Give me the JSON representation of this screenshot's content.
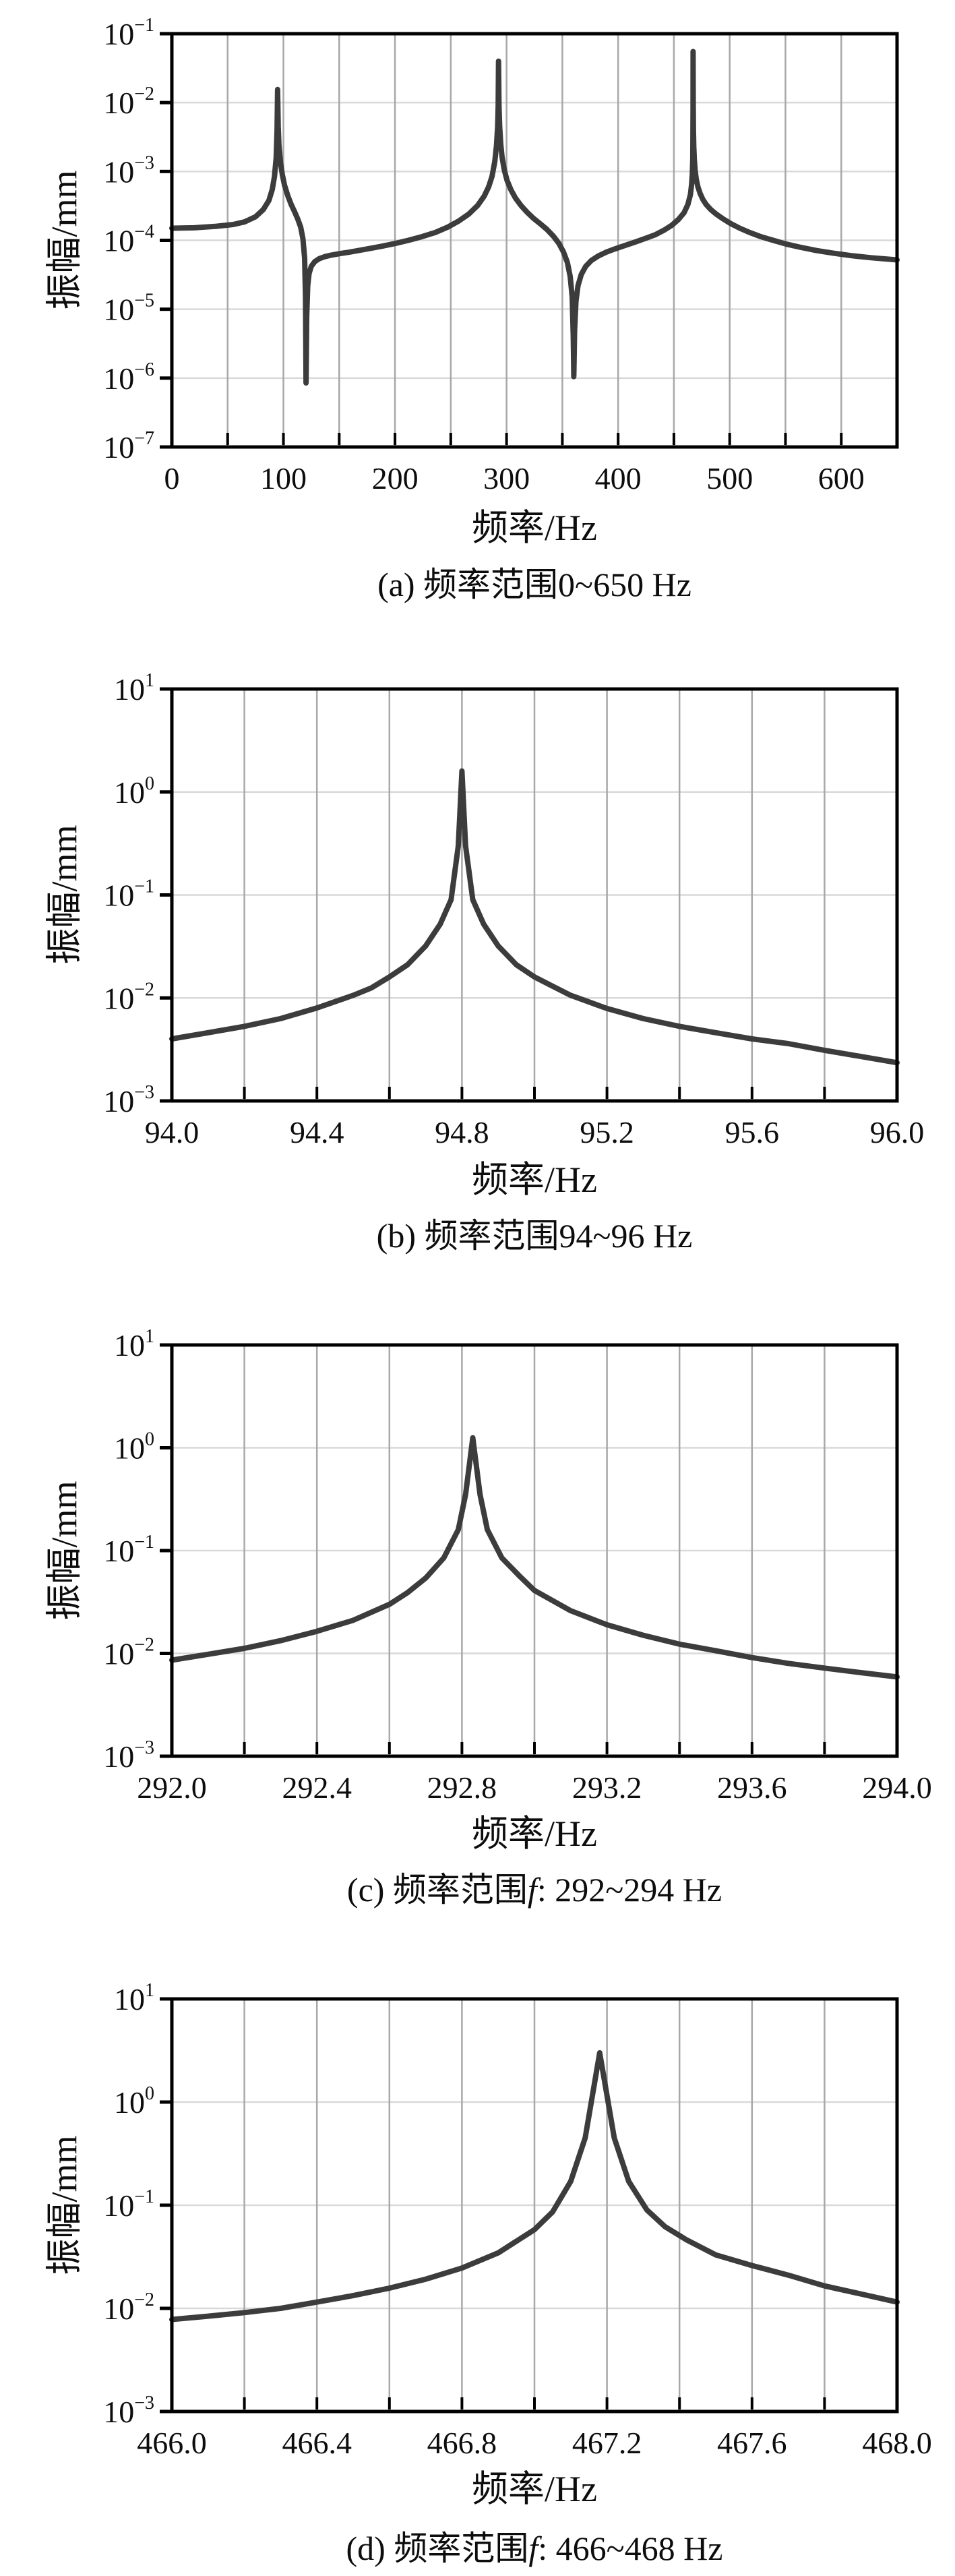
{
  "figure": {
    "description": "四幅振动幅频响应曲线(对数坐标)",
    "background": "#ffffff"
  },
  "style": {
    "curve_color": "#3c3c3c",
    "frame_color": "#000000",
    "grid_vertical_color": "#a8a8a8",
    "grid_horizontal_color": "#d9d9d9",
    "text_color": "#0d0d0d"
  },
  "chart_data": [
    {
      "id": "a",
      "type": "line",
      "caption": {
        "pre": "(a) 频率范围0~650 Hz",
        "em": "",
        "post": ""
      },
      "xlabel": "频率/Hz",
      "ylabel": "振幅/mm",
      "x_min": 0,
      "x_max": 650,
      "x_grid_step": 50,
      "x_ticks": [
        {
          "v": 0,
          "label": "0"
        },
        {
          "v": 100,
          "label": "100"
        },
        {
          "v": 200,
          "label": "200"
        },
        {
          "v": 300,
          "label": "300"
        },
        {
          "v": 400,
          "label": "400"
        },
        {
          "v": 500,
          "label": "500"
        },
        {
          "v": 600,
          "label": "600"
        }
      ],
      "y_tick_base": "10",
      "y_exponents": [
        -1,
        -2,
        -3,
        -4,
        -5,
        -6,
        -7
      ],
      "ylim": [
        1e-07,
        0.1
      ],
      "grid": true,
      "legend": null,
      "resonances_hz": [
        94.8,
        292.8,
        467.2
      ],
      "resonance_amplitudes_mm": [
        0.0155,
        0.04,
        0.055
      ],
      "antiresonances_hz": [
        120.3,
        360.3
      ],
      "antiresonance_amplitudes_mm": [
        8.5e-07,
        1.05e-06
      ],
      "points": [
        [
          0,
          0.00015
        ],
        [
          20,
          0.000152
        ],
        [
          40,
          0.00016
        ],
        [
          55,
          0.00017
        ],
        [
          65,
          0.000185
        ],
        [
          75,
          0.00022
        ],
        [
          82,
          0.00028
        ],
        [
          87,
          0.00038
        ],
        [
          90,
          0.00055
        ],
        [
          92,
          0.00085
        ],
        [
          93.5,
          0.0016
        ],
        [
          94.3,
          0.004
        ],
        [
          94.8,
          0.0155
        ],
        [
          95.3,
          0.0045
        ],
        [
          96,
          0.0024
        ],
        [
          97.5,
          0.0013
        ],
        [
          99,
          0.0009
        ],
        [
          101,
          0.00063
        ],
        [
          104,
          0.00044
        ],
        [
          107,
          0.00033
        ],
        [
          110,
          0.00026
        ],
        [
          113,
          0.0002
        ],
        [
          115.5,
          0.000155
        ],
        [
          117.5,
          0.000105
        ],
        [
          119,
          5.5e-05
        ],
        [
          119.8,
          1.5e-05
        ],
        [
          120.3,
          8.5e-07
        ],
        [
          120.9,
          8e-06
        ],
        [
          121.8,
          2.2e-05
        ],
        [
          123,
          3.3e-05
        ],
        [
          125,
          4.2e-05
        ],
        [
          128,
          4.9e-05
        ],
        [
          132,
          5.4e-05
        ],
        [
          137,
          5.8e-05
        ],
        [
          143,
          6.1e-05
        ],
        [
          150,
          6.4e-05
        ],
        [
          158,
          6.7e-05
        ],
        [
          167,
          7.1e-05
        ],
        [
          177,
          7.6e-05
        ],
        [
          188,
          8.2e-05
        ],
        [
          200,
          9e-05
        ],
        [
          212,
          0.0001
        ],
        [
          224,
          0.000113
        ],
        [
          236,
          0.00013
        ],
        [
          247,
          0.000155
        ],
        [
          257,
          0.00019
        ],
        [
          266,
          0.00024
        ],
        [
          274,
          0.00032
        ],
        [
          280,
          0.00044
        ],
        [
          284,
          0.0006
        ],
        [
          287,
          0.00085
        ],
        [
          289.5,
          0.0014
        ],
        [
          291,
          0.0024
        ],
        [
          292,
          0.0045
        ],
        [
          292.5,
          0.009
        ],
        [
          292.83,
          0.04
        ],
        [
          293.2,
          0.009
        ],
        [
          293.8,
          0.0045
        ],
        [
          294.8,
          0.0025
        ],
        [
          296,
          0.0016
        ],
        [
          298,
          0.00105
        ],
        [
          300.5,
          0.00074
        ],
        [
          304,
          0.00054
        ],
        [
          308,
          0.00041
        ],
        [
          313,
          0.00032
        ],
        [
          318,
          0.00026
        ],
        [
          324,
          0.00021
        ],
        [
          330,
          0.000175
        ],
        [
          336,
          0.000145
        ],
        [
          342,
          0.000115
        ],
        [
          347,
          9e-05
        ],
        [
          351,
          6.8e-05
        ],
        [
          354.5,
          4.8e-05
        ],
        [
          357,
          3e-05
        ],
        [
          358.8,
          1.5e-05
        ],
        [
          359.8,
          4e-06
        ],
        [
          360.3,
          1.05e-06
        ],
        [
          361,
          5e-06
        ],
        [
          362.2,
          1.3e-05
        ],
        [
          364,
          2.2e-05
        ],
        [
          367,
          3.2e-05
        ],
        [
          371,
          4.2e-05
        ],
        [
          376,
          5.1e-05
        ],
        [
          382,
          5.9e-05
        ],
        [
          389,
          6.7e-05
        ],
        [
          397,
          7.5e-05
        ],
        [
          406,
          8.4e-05
        ],
        [
          415,
          9.4e-05
        ],
        [
          424,
          0.000106
        ],
        [
          433,
          0.00012
        ],
        [
          441,
          0.00014
        ],
        [
          448,
          0.000165
        ],
        [
          454,
          0.0002
        ],
        [
          459,
          0.00025
        ],
        [
          462.5,
          0.00033
        ],
        [
          464.8,
          0.00046
        ],
        [
          465.9,
          0.00065
        ],
        [
          466.5,
          0.0009
        ],
        [
          466.9,
          0.0015
        ],
        [
          467.05,
          0.003
        ],
        [
          467.15,
          0.008
        ],
        [
          467.2,
          0.055
        ],
        [
          467.3,
          0.01
        ],
        [
          467.5,
          0.004
        ],
        [
          467.8,
          0.0023
        ],
        [
          468.3,
          0.0015
        ],
        [
          469,
          0.00105
        ],
        [
          470,
          0.00078
        ],
        [
          471.5,
          0.0006
        ],
        [
          473.5,
          0.00048
        ],
        [
          476,
          0.00039
        ],
        [
          479,
          0.00033
        ],
        [
          483,
          0.00028
        ],
        [
          488,
          0.00024
        ],
        [
          494,
          0.000205
        ],
        [
          501,
          0.000175
        ],
        [
          509,
          0.00015
        ],
        [
          518,
          0.00013
        ],
        [
          528,
          0.000113
        ],
        [
          539,
          0.0001
        ],
        [
          551,
          8.8e-05
        ],
        [
          564,
          7.9e-05
        ],
        [
          578,
          7.1e-05
        ],
        [
          593,
          6.5e-05
        ],
        [
          609,
          6e-05
        ],
        [
          626,
          5.6e-05
        ],
        [
          650,
          5.2e-05
        ]
      ]
    },
    {
      "id": "b",
      "type": "line",
      "caption": {
        "pre": "(b) 频率范围94~96 Hz",
        "em": "",
        "post": ""
      },
      "xlabel": "频率/Hz",
      "ylabel": "振幅/mm",
      "x_min": 94.0,
      "x_max": 96.0,
      "x_grid_step": 0.2,
      "x_ticks": [
        {
          "v": 94.0,
          "label": "94.0"
        },
        {
          "v": 94.4,
          "label": "94.4"
        },
        {
          "v": 94.8,
          "label": "94.8"
        },
        {
          "v": 95.2,
          "label": "95.2"
        },
        {
          "v": 95.6,
          "label": "95.6"
        },
        {
          "v": 96.0,
          "label": "96.0"
        }
      ],
      "y_tick_base": "10",
      "y_exponents": [
        1,
        0,
        -1,
        -2,
        -3
      ],
      "ylim": [
        0.001,
        10.0
      ],
      "grid": true,
      "legend": null,
      "peak": {
        "f_hz": 94.8,
        "amplitude_mm": 1.6
      },
      "points": [
        [
          94.0,
          0.004
        ],
        [
          94.1,
          0.0046
        ],
        [
          94.2,
          0.0053
        ],
        [
          94.3,
          0.0063
        ],
        [
          94.4,
          0.008
        ],
        [
          94.5,
          0.0106
        ],
        [
          94.55,
          0.0125
        ],
        [
          94.6,
          0.016
        ],
        [
          94.65,
          0.021
        ],
        [
          94.7,
          0.032
        ],
        [
          94.74,
          0.052
        ],
        [
          94.77,
          0.09
        ],
        [
          94.79,
          0.3
        ],
        [
          94.8,
          1.6
        ],
        [
          94.81,
          0.3
        ],
        [
          94.83,
          0.09
        ],
        [
          94.86,
          0.052
        ],
        [
          94.9,
          0.032
        ],
        [
          94.95,
          0.021
        ],
        [
          95.0,
          0.016
        ],
        [
          95.05,
          0.013
        ],
        [
          95.1,
          0.0106
        ],
        [
          95.2,
          0.0079
        ],
        [
          95.3,
          0.0063
        ],
        [
          95.4,
          0.0053
        ],
        [
          95.5,
          0.0046
        ],
        [
          95.6,
          0.004
        ],
        [
          95.7,
          0.0036
        ],
        [
          95.8,
          0.0031
        ],
        [
          95.9,
          0.0027
        ],
        [
          96.0,
          0.00235
        ]
      ]
    },
    {
      "id": "c",
      "type": "line",
      "caption": {
        "pre": "(c) 频率范围",
        "em": "f",
        "post": ": 292~294 Hz"
      },
      "xlabel": "频率/Hz",
      "ylabel": "振幅/mm",
      "x_min": 292.0,
      "x_max": 294.0,
      "x_grid_step": 0.2,
      "x_ticks": [
        {
          "v": 292.0,
          "label": "292.0"
        },
        {
          "v": 292.4,
          "label": "292.4"
        },
        {
          "v": 292.8,
          "label": "292.8"
        },
        {
          "v": 293.2,
          "label": "293.2"
        },
        {
          "v": 293.6,
          "label": "293.6"
        },
        {
          "v": 294.0,
          "label": "294.0"
        }
      ],
      "y_tick_base": "10",
      "y_exponents": [
        1,
        0,
        -1,
        -2,
        -3
      ],
      "ylim": [
        0.001,
        10.0
      ],
      "grid": true,
      "legend": null,
      "peak": {
        "f_hz": 292.83,
        "amplitude_mm": 1.25
      },
      "points": [
        [
          292.0,
          0.0086
        ],
        [
          292.1,
          0.0098
        ],
        [
          292.2,
          0.0112
        ],
        [
          292.3,
          0.0133
        ],
        [
          292.4,
          0.0164
        ],
        [
          292.5,
          0.021
        ],
        [
          292.6,
          0.03
        ],
        [
          292.65,
          0.039
        ],
        [
          292.7,
          0.054
        ],
        [
          292.75,
          0.085
        ],
        [
          292.79,
          0.16
        ],
        [
          292.81,
          0.35
        ],
        [
          292.83,
          1.25
        ],
        [
          292.85,
          0.35
        ],
        [
          292.87,
          0.16
        ],
        [
          292.91,
          0.085
        ],
        [
          292.96,
          0.056
        ],
        [
          293.0,
          0.041
        ],
        [
          293.1,
          0.026
        ],
        [
          293.2,
          0.019
        ],
        [
          293.3,
          0.015
        ],
        [
          293.4,
          0.0123
        ],
        [
          293.5,
          0.0106
        ],
        [
          293.6,
          0.0091
        ],
        [
          293.7,
          0.008
        ],
        [
          293.8,
          0.0072
        ],
        [
          293.9,
          0.0065
        ],
        [
          294.0,
          0.0059
        ]
      ]
    },
    {
      "id": "d",
      "type": "line",
      "caption": {
        "pre": "(d) 频率范围",
        "em": "f",
        "post": ": 466~468 Hz"
      },
      "xlabel": "频率/Hz",
      "ylabel": "振幅/mm",
      "x_min": 466.0,
      "x_max": 468.0,
      "x_grid_step": 0.2,
      "x_ticks": [
        {
          "v": 466.0,
          "label": "466.0"
        },
        {
          "v": 466.4,
          "label": "466.4"
        },
        {
          "v": 466.8,
          "label": "466.8"
        },
        {
          "v": 467.2,
          "label": "467.2"
        },
        {
          "v": 467.6,
          "label": "467.6"
        },
        {
          "v": 468.0,
          "label": "468.0"
        }
      ],
      "y_tick_base": "10",
      "y_exponents": [
        1,
        0,
        -1,
        -2,
        -3
      ],
      "ylim": [
        0.001,
        10.0
      ],
      "grid": true,
      "legend": null,
      "peak": {
        "f_hz": 467.18,
        "amplitude_mm": 3.0
      },
      "points": [
        [
          466.0,
          0.0078
        ],
        [
          466.1,
          0.0084
        ],
        [
          466.2,
          0.0091
        ],
        [
          466.3,
          0.01
        ],
        [
          466.4,
          0.0115
        ],
        [
          466.5,
          0.0133
        ],
        [
          466.6,
          0.0157
        ],
        [
          466.7,
          0.0192
        ],
        [
          466.8,
          0.0246
        ],
        [
          466.9,
          0.0345
        ],
        [
          467.0,
          0.058
        ],
        [
          467.05,
          0.086
        ],
        [
          467.1,
          0.17
        ],
        [
          467.14,
          0.45
        ],
        [
          467.18,
          3.0
        ],
        [
          467.22,
          0.45
        ],
        [
          467.26,
          0.17
        ],
        [
          467.31,
          0.09
        ],
        [
          467.36,
          0.062
        ],
        [
          467.42,
          0.046
        ],
        [
          467.5,
          0.033
        ],
        [
          467.6,
          0.026
        ],
        [
          467.7,
          0.021
        ],
        [
          467.8,
          0.0165
        ],
        [
          467.9,
          0.0138
        ],
        [
          468.0,
          0.0115
        ]
      ]
    }
  ]
}
